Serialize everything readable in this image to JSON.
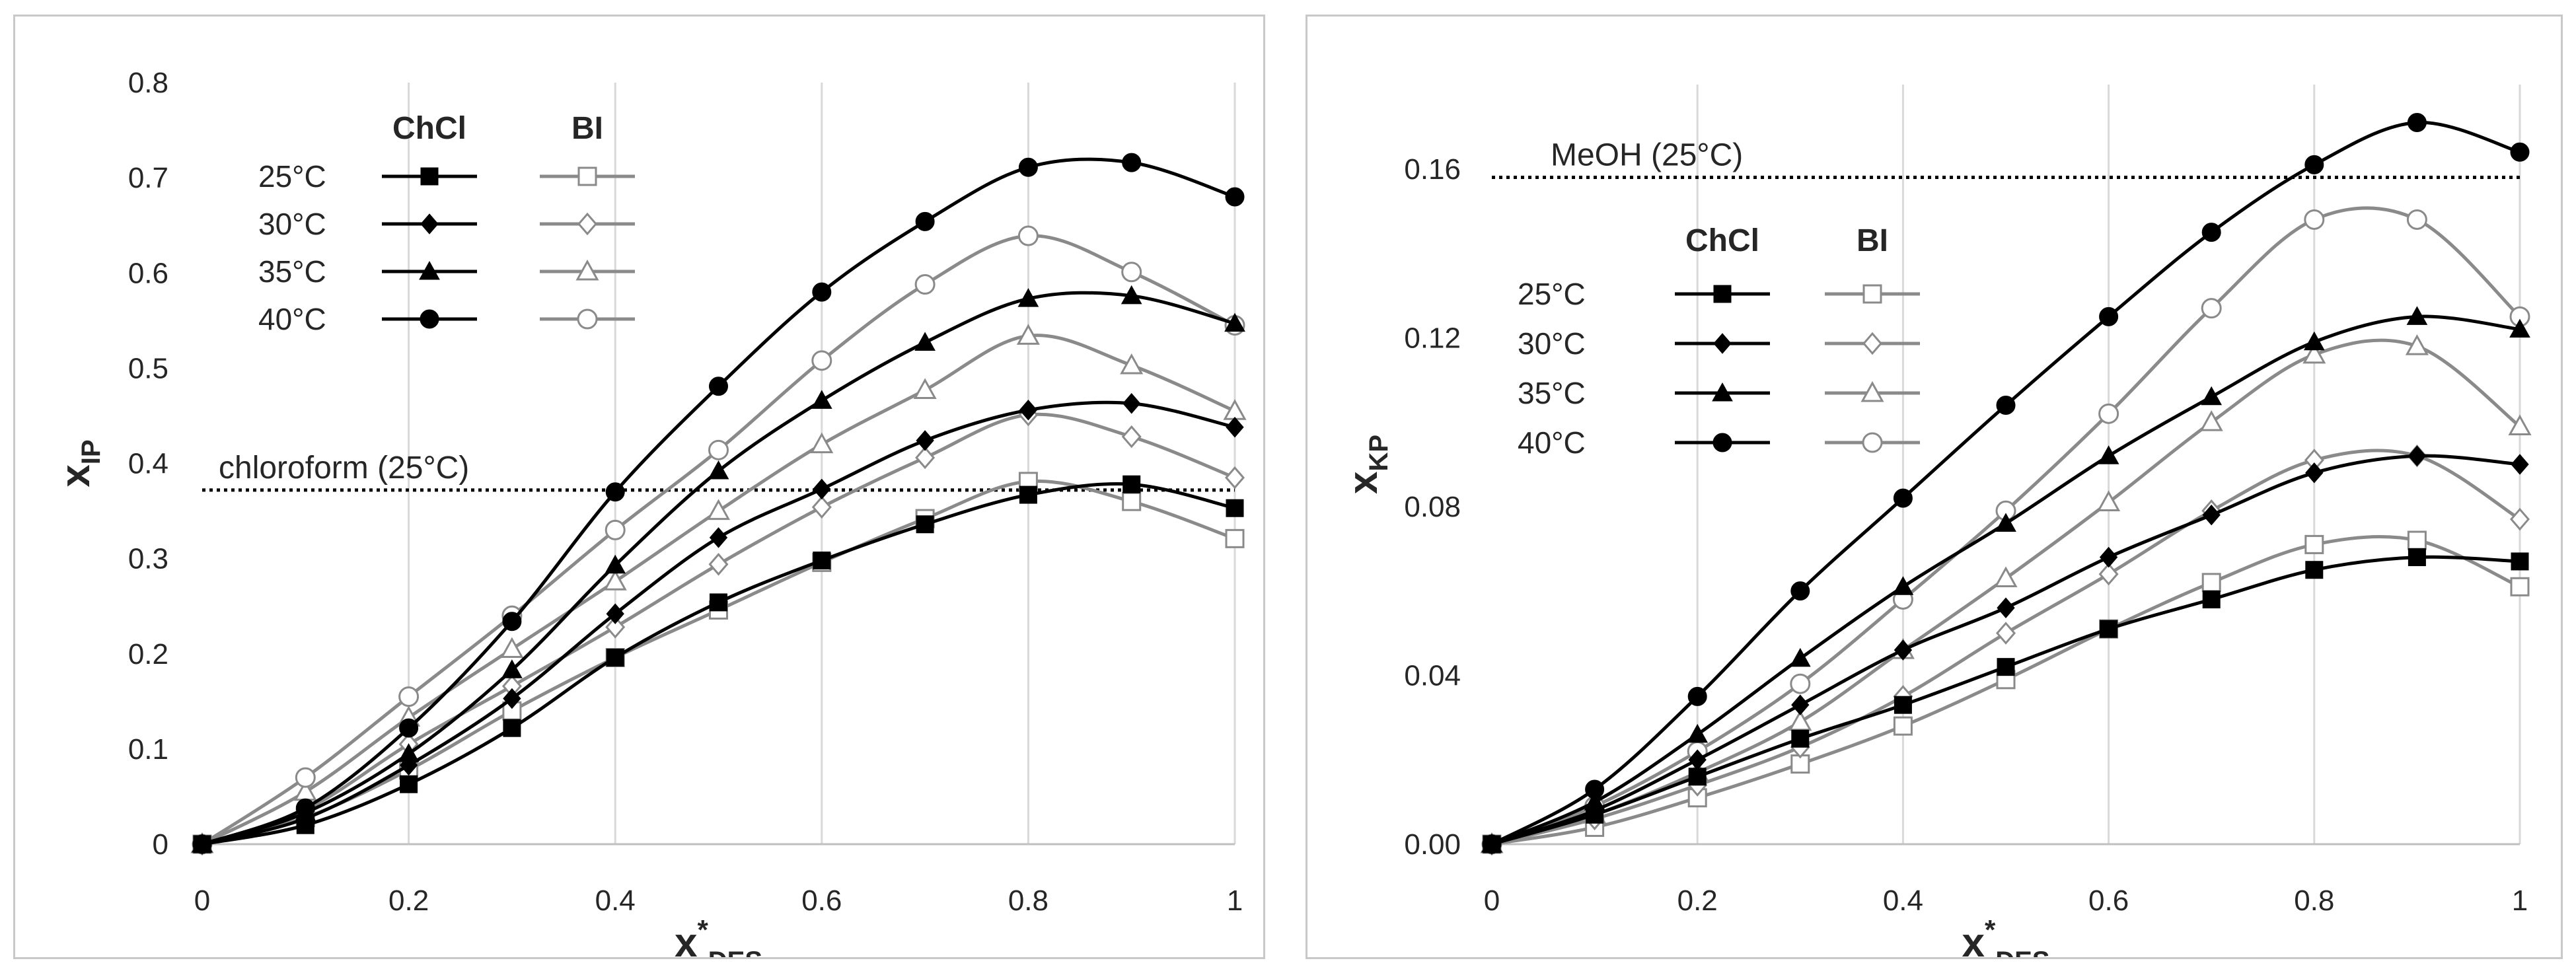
{
  "colors": {
    "chcl": "#000000",
    "bi": "#8a8a8a",
    "grid": "#d9d9d9",
    "axis": "#bfbfbf",
    "text": "#262626"
  },
  "chart_data": [
    {
      "type": "line",
      "xlabel": "x",
      "xlabel_sup": "*",
      "xlabel_sub": "DES",
      "ylabel": "x",
      "ylabel_sub": "IP",
      "xlim": [
        0,
        1
      ],
      "ylim": [
        0,
        0.8
      ],
      "xticks": [
        0,
        0.2,
        0.4,
        0.6,
        0.8,
        1
      ],
      "xtick_labels": [
        "0",
        "0.2",
        "0.4",
        "0.6",
        "0.8",
        "1"
      ],
      "yticks": [
        0,
        0.1,
        0.2,
        0.3,
        0.4,
        0.5,
        0.6,
        0.7,
        0.8
      ],
      "ytick_labels": [
        "0",
        "0.1",
        "0.2",
        "0.3",
        "0.4",
        "0.5",
        "0.6",
        "0.7",
        "0.8"
      ],
      "grid": "vertical",
      "x": [
        0,
        0.1,
        0.2,
        0.3,
        0.4,
        0.5,
        0.6,
        0.7,
        0.8,
        0.9,
        1.0
      ],
      "reference_line": {
        "label": "chloroform (25°C)",
        "y": 0.372
      },
      "legend": {
        "placement": "top-left",
        "col_headers": [
          "ChCl",
          "BI"
        ],
        "row_labels": [
          "25°C",
          "30°C",
          "35°C",
          "40°C"
        ]
      },
      "series": [
        {
          "name": "ChCl 25°C",
          "solvent": "ChCl",
          "temp": "25°C",
          "marker": "square",
          "values": [
            0,
            0.02,
            0.063,
            0.122,
            0.196,
            0.254,
            0.298,
            0.336,
            0.367,
            0.378,
            0.353
          ]
        },
        {
          "name": "ChCl 30°C",
          "solvent": "ChCl",
          "temp": "30°C",
          "marker": "diamond",
          "values": [
            0,
            0.027,
            0.083,
            0.153,
            0.242,
            0.322,
            0.373,
            0.424,
            0.456,
            0.463,
            0.438
          ]
        },
        {
          "name": "ChCl 35°C",
          "solvent": "ChCl",
          "temp": "35°C",
          "marker": "triangle",
          "values": [
            0,
            0.033,
            0.095,
            0.183,
            0.293,
            0.392,
            0.466,
            0.527,
            0.573,
            0.576,
            0.547
          ]
        },
        {
          "name": "ChCl 40°C",
          "solvent": "ChCl",
          "temp": "40°C",
          "marker": "circle",
          "values": [
            0,
            0.038,
            0.122,
            0.234,
            0.37,
            0.481,
            0.58,
            0.654,
            0.711,
            0.716,
            0.68
          ]
        },
        {
          "name": "BI 25°C",
          "solvent": "BI",
          "temp": "25°C",
          "marker": "square",
          "values": [
            0,
            0.028,
            0.078,
            0.14,
            0.196,
            0.246,
            0.296,
            0.342,
            0.381,
            0.36,
            0.321
          ]
        },
        {
          "name": "BI 30°C",
          "solvent": "BI",
          "temp": "30°C",
          "marker": "diamond",
          "values": [
            0,
            0.036,
            0.105,
            0.166,
            0.228,
            0.294,
            0.354,
            0.406,
            0.451,
            0.428,
            0.385
          ]
        },
        {
          "name": "BI 35°C",
          "solvent": "BI",
          "temp": "35°C",
          "marker": "triangle",
          "values": [
            0,
            0.055,
            0.133,
            0.205,
            0.276,
            0.35,
            0.42,
            0.477,
            0.534,
            0.503,
            0.455
          ]
        },
        {
          "name": "BI 40°C",
          "solvent": "BI",
          "temp": "40°C",
          "marker": "circle",
          "values": [
            0,
            0.07,
            0.155,
            0.24,
            0.33,
            0.414,
            0.508,
            0.588,
            0.639,
            0.601,
            0.545
          ]
        }
      ]
    },
    {
      "type": "line",
      "xlabel": "x",
      "xlabel_sup": "*",
      "xlabel_sub": "DES",
      "ylabel": "x",
      "ylabel_sub": "KP",
      "xlim": [
        0,
        1
      ],
      "ylim": [
        0,
        0.18
      ],
      "xticks": [
        0,
        0.2,
        0.4,
        0.6,
        0.8,
        1
      ],
      "xtick_labels": [
        "0",
        "0.2",
        "0.4",
        "0.6",
        "0.8",
        "1"
      ],
      "yticks": [
        0,
        0.04,
        0.08,
        0.12,
        0.16
      ],
      "ytick_labels": [
        "0.00",
        "0.04",
        "0.08",
        "0.12",
        "0.16"
      ],
      "grid": "vertical",
      "x": [
        0,
        0.1,
        0.2,
        0.3,
        0.4,
        0.5,
        0.6,
        0.7,
        0.8,
        0.9,
        1.0
      ],
      "reference_line": {
        "label": "MeOH (25°C)",
        "y": 0.158
      },
      "legend": {
        "placement": "upper-left",
        "col_headers": [
          "ChCl",
          "BI"
        ],
        "row_labels": [
          "25°C",
          "30°C",
          "35°C",
          "40°C"
        ]
      },
      "series": [
        {
          "name": "ChCl 25°C",
          "solvent": "ChCl",
          "temp": "25°C",
          "marker": "square",
          "values": [
            0,
            0.007,
            0.016,
            0.025,
            0.033,
            0.042,
            0.051,
            0.058,
            0.065,
            0.068,
            0.067
          ]
        },
        {
          "name": "ChCl 30°C",
          "solvent": "ChCl",
          "temp": "30°C",
          "marker": "diamond",
          "values": [
            0,
            0.008,
            0.02,
            0.033,
            0.046,
            0.056,
            0.068,
            0.078,
            0.088,
            0.092,
            0.09
          ]
        },
        {
          "name": "ChCl 35°C",
          "solvent": "ChCl",
          "temp": "35°C",
          "marker": "triangle",
          "values": [
            0,
            0.01,
            0.026,
            0.044,
            0.061,
            0.076,
            0.092,
            0.106,
            0.119,
            0.125,
            0.122
          ]
        },
        {
          "name": "ChCl 40°C",
          "solvent": "ChCl",
          "temp": "40°C",
          "marker": "circle",
          "values": [
            0,
            0.013,
            0.035,
            0.06,
            0.082,
            0.104,
            0.125,
            0.145,
            0.161,
            0.171,
            0.164
          ]
        },
        {
          "name": "BI 25°C",
          "solvent": "BI",
          "temp": "25°C",
          "marker": "square",
          "values": [
            0,
            0.004,
            0.011,
            0.019,
            0.028,
            0.039,
            0.051,
            0.062,
            0.071,
            0.072,
            0.061
          ]
        },
        {
          "name": "BI 30°C",
          "solvent": "BI",
          "temp": "30°C",
          "marker": "diamond",
          "values": [
            0,
            0.006,
            0.014,
            0.023,
            0.035,
            0.05,
            0.064,
            0.079,
            0.091,
            0.092,
            0.077
          ]
        },
        {
          "name": "BI 35°C",
          "solvent": "BI",
          "temp": "35°C",
          "marker": "triangle",
          "values": [
            0,
            0.007,
            0.017,
            0.029,
            0.046,
            0.063,
            0.081,
            0.1,
            0.116,
            0.118,
            0.099
          ]
        },
        {
          "name": "BI 40°C",
          "solvent": "BI",
          "temp": "40°C",
          "marker": "circle",
          "values": [
            0,
            0.009,
            0.022,
            0.038,
            0.058,
            0.079,
            0.102,
            0.127,
            0.148,
            0.148,
            0.125
          ]
        }
      ]
    }
  ]
}
